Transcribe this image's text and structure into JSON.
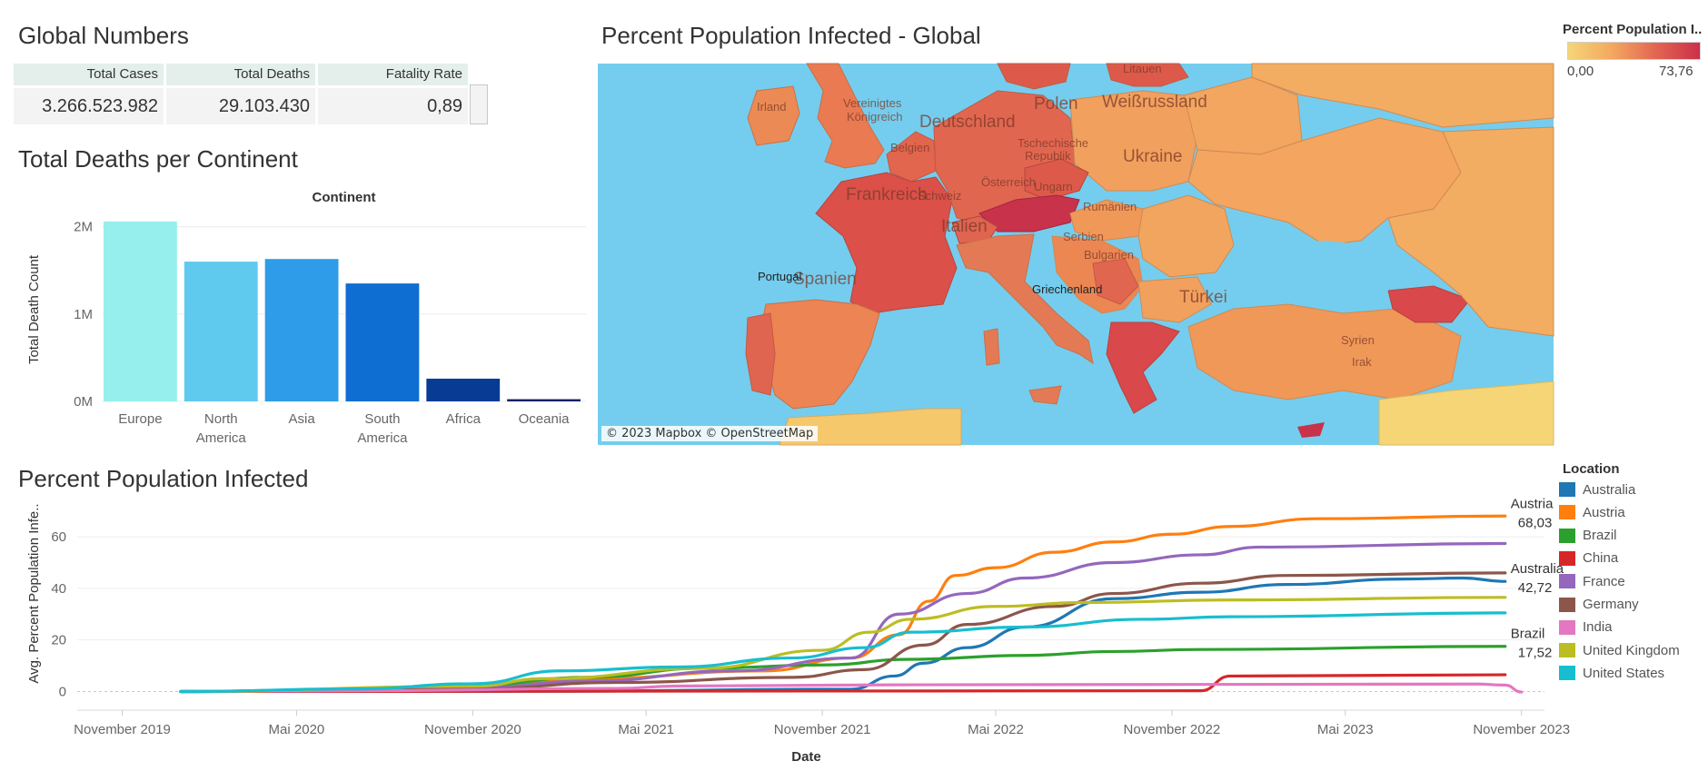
{
  "global_numbers": {
    "title": "Global Numbers",
    "headers": [
      "Total Cases",
      "Total Deaths",
      "Fatality Rate"
    ],
    "values": [
      "3.266.523.982",
      "29.103.430",
      "0,89"
    ]
  },
  "deaths_title": "Total Deaths per Continent",
  "map": {
    "title": "Percent Population Infected -  Global",
    "credit": "© 2023 Mapbox © OpenStreetMap",
    "legend_title": "Percent Population I..",
    "legend_min": "0,00",
    "legend_max": "73,76",
    "colors": {
      "low": "#f6d577",
      "high": "#cc2f4a",
      "water": "#74cdee"
    },
    "labels": [
      "Litauen",
      "Irland",
      "Vereinigtes Königreich",
      "Polen",
      "Weißrussland",
      "Deutschland",
      "Belgien",
      "Tschechische Republik",
      "Ukraine",
      "Frankreich",
      "Schweiz",
      "Österreich",
      "Ungarn",
      "Rumänien",
      "Italien",
      "Serbien",
      "Bulgarien",
      "Spanien",
      "Portugal",
      "Griechenland",
      "Türkei",
      "Syrien",
      "Irak"
    ]
  },
  "line_title": "Percent Population Infected",
  "chart_data": [
    {
      "type": "bar",
      "title": "Total Deaths per Continent",
      "header": "Continent",
      "ylabel": "Total Death Count",
      "categories": [
        "Europe",
        "North America",
        "Asia",
        "South America",
        "Africa",
        "Oceania"
      ],
      "category_lines": [
        [
          "Europe"
        ],
        [
          "North",
          "America"
        ],
        [
          "Asia"
        ],
        [
          "South",
          "America"
        ],
        [
          "Africa"
        ],
        [
          "Oceania"
        ]
      ],
      "values": [
        2060000,
        1600000,
        1630000,
        1350000,
        260000,
        25000
      ],
      "colors": [
        "#97efed",
        "#5fc9ee",
        "#2e9ce8",
        "#0e6ed2",
        "#083b93",
        "#062166"
      ],
      "ylim": [
        0,
        2100000
      ],
      "yticks": [
        0,
        1000000,
        2000000
      ],
      "ytick_labels": [
        "0M",
        "1M",
        "2M"
      ],
      "grid": true
    },
    {
      "type": "line",
      "title": "Percent Population Infected",
      "xlabel": "Date",
      "ylabel": "Avg. Percent Population Infe..",
      "xlim": [
        "2019-09-15",
        "2023-11-25"
      ],
      "ylim": [
        -3,
        72
      ],
      "yticks": [
        0,
        20,
        40,
        60
      ],
      "xticks": [
        "2019-11-01",
        "2020-05-01",
        "2020-11-01",
        "2021-05-01",
        "2021-11-01",
        "2022-05-01",
        "2022-11-01",
        "2023-05-01",
        "2023-11-01"
      ],
      "xtick_labels": [
        "November 2019",
        "Mai 2020",
        "November 2020",
        "Mai 2021",
        "November 2021",
        "Mai 2022",
        "November 2022",
        "Mai 2023",
        "November 2023"
      ],
      "grid": true,
      "legend_title": "Location",
      "series": [
        {
          "name": "Australia",
          "color": "#1f77b4",
          "points": [
            [
              "2020-01-01",
              0
            ],
            [
              "2021-01-01",
              0.1
            ],
            [
              "2021-12-01",
              0.9
            ],
            [
              "2022-01-15",
              6
            ],
            [
              "2022-02-15",
              11
            ],
            [
              "2022-04-01",
              17
            ],
            [
              "2022-06-01",
              25
            ],
            [
              "2022-09-01",
              36
            ],
            [
              "2022-12-01",
              38.5
            ],
            [
              "2023-03-01",
              41.5
            ],
            [
              "2023-07-01",
              43.6
            ],
            [
              "2023-09-01",
              44
            ],
            [
              "2023-10-15",
              42.7
            ]
          ],
          "end_label": [
            "Australia",
            "42,72"
          ]
        },
        {
          "name": "Austria",
          "color": "#ff7f0e",
          "points": [
            [
              "2020-01-01",
              0
            ],
            [
              "2020-06-01",
              0.3
            ],
            [
              "2020-11-01",
              1.5
            ],
            [
              "2021-03-01",
              5
            ],
            [
              "2021-09-01",
              8
            ],
            [
              "2021-12-01",
              13
            ],
            [
              "2022-01-20",
              22
            ],
            [
              "2022-02-20",
              35
            ],
            [
              "2022-03-20",
              45
            ],
            [
              "2022-05-01",
              48
            ],
            [
              "2022-07-01",
              54
            ],
            [
              "2022-09-01",
              58
            ],
            [
              "2022-11-01",
              61
            ],
            [
              "2023-01-01",
              64
            ],
            [
              "2023-04-01",
              67
            ],
            [
              "2023-10-15",
              68.03
            ]
          ],
          "end_label": [
            "Austria",
            "68,03"
          ]
        },
        {
          "name": "Brazil",
          "color": "#2ca02c",
          "points": [
            [
              "2020-01-01",
              0
            ],
            [
              "2020-06-01",
              0.6
            ],
            [
              "2020-11-01",
              2.5
            ],
            [
              "2021-03-01",
              5.5
            ],
            [
              "2021-07-01",
              9
            ],
            [
              "2021-11-01",
              10.3
            ],
            [
              "2022-02-01",
              12.5
            ],
            [
              "2022-06-01",
              14
            ],
            [
              "2022-09-01",
              15.5
            ],
            [
              "2022-12-01",
              16.3
            ],
            [
              "2023-10-15",
              17.52
            ]
          ],
          "end_label": [
            "Brazil",
            "17,52"
          ]
        },
        {
          "name": "China",
          "color": "#d62728",
          "points": [
            [
              "2020-01-01",
              0
            ],
            [
              "2022-12-01",
              0.3
            ],
            [
              "2023-01-01",
              6
            ],
            [
              "2023-10-15",
              6.5
            ]
          ]
        },
        {
          "name": "France",
          "color": "#9467bd",
          "points": [
            [
              "2020-01-01",
              0
            ],
            [
              "2020-11-01",
              1.5
            ],
            [
              "2021-03-01",
              4
            ],
            [
              "2021-08-01",
              8
            ],
            [
              "2021-12-01",
              13
            ],
            [
              "2022-01-20",
              30
            ],
            [
              "2022-04-01",
              38
            ],
            [
              "2022-06-01",
              44
            ],
            [
              "2022-09-01",
              50
            ],
            [
              "2022-12-01",
              53
            ],
            [
              "2023-02-01",
              56
            ],
            [
              "2023-10-15",
              57.4
            ]
          ]
        },
        {
          "name": "Germany",
          "color": "#8c564b",
          "points": [
            [
              "2020-01-01",
              0
            ],
            [
              "2020-11-01",
              1
            ],
            [
              "2021-04-01",
              3.5
            ],
            [
              "2021-10-01",
              5.5
            ],
            [
              "2021-12-15",
              8.5
            ],
            [
              "2022-02-15",
              18
            ],
            [
              "2022-04-01",
              26
            ],
            [
              "2022-07-01",
              33
            ],
            [
              "2022-09-01",
              38
            ],
            [
              "2022-12-01",
              42
            ],
            [
              "2023-03-01",
              45
            ],
            [
              "2023-10-15",
              46
            ]
          ]
        },
        {
          "name": "India",
          "color": "#e377c2",
          "points": [
            [
              "2020-01-01",
              0
            ],
            [
              "2020-07-01",
              0.3
            ],
            [
              "2021-04-01",
              1.2
            ],
            [
              "2021-06-01",
              2.1
            ],
            [
              "2022-01-15",
              2.6
            ],
            [
              "2023-09-15",
              2.9
            ],
            [
              "2023-10-15",
              2.5
            ],
            [
              "2023-11-01",
              -0.2
            ]
          ]
        },
        {
          "name": "United Kingdom",
          "color": "#bcbd22",
          "points": [
            [
              "2020-01-01",
              0
            ],
            [
              "2020-11-01",
              2
            ],
            [
              "2021-01-15",
              5
            ],
            [
              "2021-07-01",
              9
            ],
            [
              "2021-11-01",
              16
            ],
            [
              "2021-12-20",
              23
            ],
            [
              "2022-02-01",
              28
            ],
            [
              "2022-05-01",
              33
            ],
            [
              "2022-08-01",
              34.5
            ],
            [
              "2023-01-01",
              35.5
            ],
            [
              "2023-10-15",
              36.5
            ]
          ]
        },
        {
          "name": "United States",
          "color": "#17becf",
          "points": [
            [
              "2020-01-01",
              0
            ],
            [
              "2020-07-01",
              1
            ],
            [
              "2020-11-01",
              3
            ],
            [
              "2021-02-01",
              8
            ],
            [
              "2021-06-01",
              9.5
            ],
            [
              "2021-10-01",
              13
            ],
            [
              "2021-12-15",
              17
            ],
            [
              "2022-02-01",
              23
            ],
            [
              "2022-06-01",
              25
            ],
            [
              "2022-10-01",
              28
            ],
            [
              "2023-01-01",
              29
            ],
            [
              "2023-10-15",
              30.5
            ]
          ]
        }
      ]
    }
  ]
}
